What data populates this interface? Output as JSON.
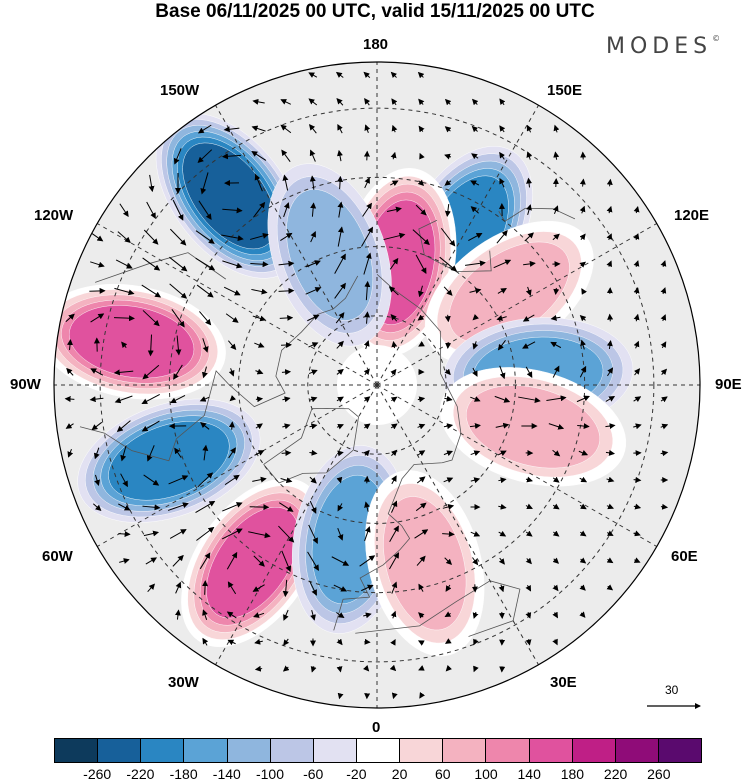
{
  "title": "Base 06/11/2025 00 UTC, valid 15/11/2025 00 UTC",
  "logo": "MODES",
  "logo_mark": "©",
  "longitude_labels": {
    "n180": "180",
    "w150": "150W",
    "e150": "150E",
    "w120": "120W",
    "e120": "120E",
    "w90": "90W",
    "e90": "90E",
    "w60": "60W",
    "e60": "60E",
    "w30": "30W",
    "e30": "30E",
    "s0": "0"
  },
  "reference_vector_label": "30",
  "colorbar": {
    "ticks": [
      "-260",
      "-220",
      "-180",
      "-140",
      "-100",
      "-60",
      "-20",
      "20",
      "60",
      "100",
      "140",
      "180",
      "220",
      "260"
    ],
    "colors": [
      "#0d3a5c",
      "#17609a",
      "#2a86c2",
      "#5ba3d6",
      "#8fb6de",
      "#bcc6e6",
      "#e2e1f2",
      "#ffffff",
      "#f8d6d8",
      "#f4b2c0",
      "#ee86ac",
      "#e0529e",
      "#bf1f86",
      "#8f0c78",
      "#5a0a6e"
    ]
  },
  "anomaly_centers": [
    {
      "sign": "neg",
      "lon": -142,
      "lat": 38,
      "value": -180
    },
    {
      "sign": "pos",
      "lon": -100,
      "lat": 36,
      "value": 160
    },
    {
      "sign": "neg",
      "lon": -70,
      "lat": 42,
      "value": -150
    },
    {
      "sign": "pos",
      "lon": -35,
      "lat": 43,
      "value": 160
    },
    {
      "sign": "neg",
      "lon": -10,
      "lat": 56,
      "value": -120
    },
    {
      "sign": "pos",
      "lon": 15,
      "lat": 50,
      "value": 80
    },
    {
      "sign": "neg",
      "lon": 150,
      "lat": 52,
      "value": -140
    },
    {
      "sign": "pos",
      "lon": 170,
      "lat": 63,
      "value": 170
    },
    {
      "sign": "neg",
      "lon": -160,
      "lat": 60,
      "value": -80
    },
    {
      "sign": "pos",
      "lon": 125,
      "lat": 55,
      "value": 80
    },
    {
      "sign": "neg",
      "lon": 94,
      "lat": 55,
      "value": -130
    },
    {
      "sign": "pos",
      "lon": 75,
      "lat": 55,
      "value": 70
    }
  ]
}
